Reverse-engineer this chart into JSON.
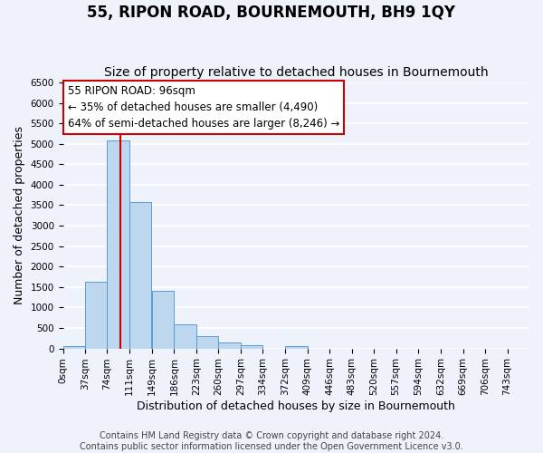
{
  "title": "55, RIPON ROAD, BOURNEMOUTH, BH9 1QY",
  "subtitle": "Size of property relative to detached houses in Bournemouth",
  "xlabel": "Distribution of detached houses by size in Bournemouth",
  "ylabel": "Number of detached properties",
  "bar_left_edges": [
    0,
    37,
    74,
    111,
    149,
    186,
    223,
    260,
    297,
    334,
    372,
    409,
    446,
    483,
    520,
    557,
    594,
    632,
    669,
    706
  ],
  "bar_heights": [
    50,
    1630,
    5080,
    3580,
    1400,
    590,
    300,
    140,
    80,
    0,
    60,
    0,
    0,
    0,
    0,
    0,
    0,
    0,
    0,
    0
  ],
  "bin_width": 37,
  "bar_color": "#bdd7ee",
  "bar_edge_color": "#5b9bd5",
  "x_tick_labels": [
    "0sqm",
    "37sqm",
    "74sqm",
    "111sqm",
    "149sqm",
    "186sqm",
    "223sqm",
    "260sqm",
    "297sqm",
    "334sqm",
    "372sqm",
    "409sqm",
    "446sqm",
    "483sqm",
    "520sqm",
    "557sqm",
    "594sqm",
    "632sqm",
    "669sqm",
    "706sqm",
    "743sqm"
  ],
  "ylim": [
    0,
    6500
  ],
  "yticks": [
    0,
    500,
    1000,
    1500,
    2000,
    2500,
    3000,
    3500,
    4000,
    4500,
    5000,
    5500,
    6000,
    6500
  ],
  "property_size": 96,
  "vline_color": "#cc0000",
  "annotation_title": "55 RIPON ROAD: 96sqm",
  "annotation_line1": "← 35% of detached houses are smaller (4,490)",
  "annotation_line2": "64% of semi-detached houses are larger (8,246) →",
  "annotation_box_color": "#ffffff",
  "annotation_box_edge": "#cc0000",
  "footer_line1": "Contains HM Land Registry data © Crown copyright and database right 2024.",
  "footer_line2": "Contains public sector information licensed under the Open Government Licence v3.0.",
  "background_color": "#eef2fb",
  "grid_color": "#ffffff",
  "title_fontsize": 12,
  "subtitle_fontsize": 10,
  "axis_label_fontsize": 9,
  "tick_fontsize": 7.5,
  "annotation_fontsize": 8.5,
  "footer_fontsize": 7
}
